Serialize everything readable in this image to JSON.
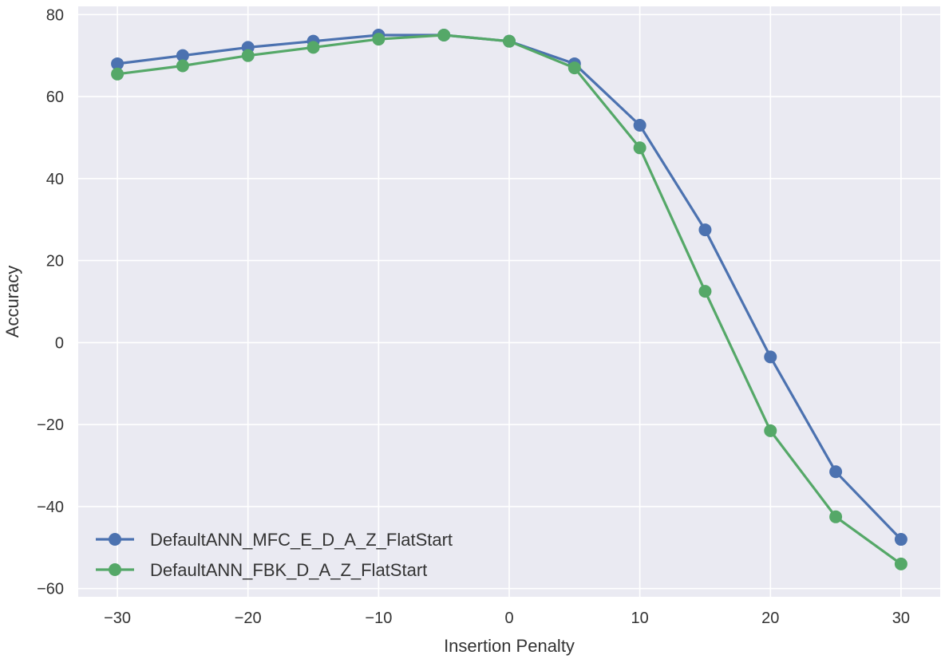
{
  "chart_data": {
    "type": "line",
    "title": "",
    "xlabel": "Insertion Penalty",
    "ylabel": "Accuracy",
    "xlim": [
      -33,
      33
    ],
    "ylim": [
      -62,
      82
    ],
    "x_ticks": [
      -30,
      -20,
      -10,
      0,
      10,
      20,
      30
    ],
    "x_tick_labels": [
      "−30",
      "−20",
      "−10",
      "0",
      "10",
      "20",
      "30"
    ],
    "y_ticks": [
      80,
      60,
      40,
      20,
      0,
      -20,
      -40,
      -60
    ],
    "y_tick_labels": [
      "80",
      "60",
      "40",
      "20",
      "0",
      "−20",
      "−40",
      "−60"
    ],
    "grid": true,
    "legend_position": "lower-left",
    "x": [
      -30,
      -25,
      -20,
      -15,
      -10,
      -5,
      0,
      5,
      10,
      15,
      20,
      25,
      30
    ],
    "series": [
      {
        "name": "DefaultANN_MFC_E_D_A_Z_FlatStart",
        "color": "#4c72b0",
        "marker": "circle",
        "values": [
          68,
          70,
          72,
          73.5,
          75,
          75,
          73.5,
          68,
          53,
          27.5,
          -3.5,
          -31.5,
          -48
        ]
      },
      {
        "name": "DefaultANN_FBK_D_A_Z_FlatStart",
        "color": "#55a868",
        "marker": "circle",
        "values": [
          65.5,
          67.5,
          70,
          72,
          74,
          75,
          73.5,
          67,
          47.5,
          12.5,
          -21.5,
          -42.5,
          -54
        ]
      }
    ]
  },
  "colors": {
    "plot_background": "#eaeaf2",
    "grid": "#ffffff"
  }
}
